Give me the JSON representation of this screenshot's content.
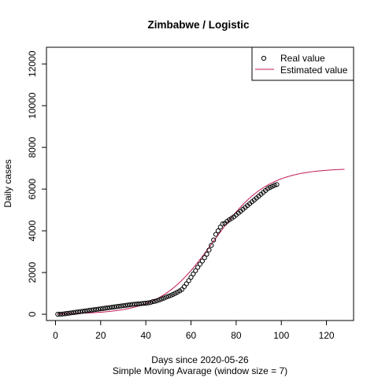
{
  "chart_data": {
    "type": "line",
    "title": "Zimbabwe / Logistic",
    "xlabel": "Days since 2020-05-26",
    "subtitle": "Simple Moving Avarage (window size = 7)",
    "ylabel": "Daily cases",
    "xlim": [
      -4,
      132
    ],
    "ylim": [
      -300,
      12800
    ],
    "x_ticks": [
      0,
      20,
      40,
      60,
      80,
      100,
      120
    ],
    "y_ticks": [
      0,
      2000,
      4000,
      6000,
      8000,
      10000,
      12000
    ],
    "grid": false,
    "legend": {
      "position": "top-right",
      "entries": [
        "Real value",
        "Estimated value"
      ]
    },
    "colors": {
      "real": "#000000",
      "estimated": "#c2185b"
    },
    "series": [
      {
        "name": "Real value",
        "style": "points",
        "x": [
          1,
          2,
          3,
          4,
          5,
          6,
          7,
          8,
          9,
          10,
          11,
          12,
          13,
          14,
          15,
          16,
          17,
          18,
          19,
          20,
          21,
          22,
          23,
          24,
          25,
          26,
          27,
          28,
          29,
          30,
          31,
          32,
          33,
          34,
          35,
          36,
          37,
          38,
          39,
          40,
          41,
          42,
          43,
          44,
          45,
          46,
          47,
          48,
          49,
          50,
          51,
          52,
          53,
          54,
          55,
          56,
          57,
          58,
          59,
          60,
          61,
          62,
          63,
          64,
          65,
          66,
          67,
          68,
          69,
          70,
          71,
          72,
          73,
          74,
          75,
          76,
          77,
          78,
          79,
          80,
          81,
          82,
          83,
          84,
          85,
          86,
          87,
          88,
          89,
          90,
          91,
          92,
          93,
          94,
          95,
          96,
          97,
          98
        ],
        "y": [
          0,
          5,
          10,
          20,
          35,
          50,
          65,
          80,
          95,
          110,
          125,
          140,
          155,
          170,
          185,
          200,
          215,
          230,
          245,
          260,
          275,
          290,
          305,
          320,
          335,
          350,
          365,
          380,
          395,
          410,
          425,
          440,
          455,
          470,
          480,
          490,
          500,
          510,
          520,
          530,
          545,
          560,
          600,
          620,
          650,
          690,
          730,
          770,
          820,
          860,
          900,
          950,
          1000,
          1060,
          1120,
          1190,
          1320,
          1460,
          1610,
          1770,
          1930,
          2090,
          2250,
          2400,
          2550,
          2710,
          2880,
          3080,
          3300,
          3560,
          3830,
          4000,
          4180,
          4330,
          4360,
          4460,
          4530,
          4600,
          4670,
          4760,
          4850,
          4940,
          5030,
          5120,
          5210,
          5300,
          5390,
          5480,
          5570,
          5660,
          5750,
          5840,
          5930,
          6020,
          6080,
          6130,
          6180,
          6220
        ]
      },
      {
        "name": "Estimated value",
        "style": "line",
        "model": {
          "K": 7000,
          "r": 0.085,
          "x0": 70
        }
      }
    ]
  }
}
